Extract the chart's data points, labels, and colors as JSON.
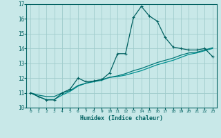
{
  "xlabel": "Humidex (Indice chaleur)",
  "ylabel": "",
  "bg_color": "#c8e8e8",
  "grid_color": "#a0cccc",
  "line_color1": "#006060",
  "line_color2": "#007878",
  "line_color3": "#009090",
  "xlim": [
    -0.5,
    23.5
  ],
  "ylim": [
    10,
    17
  ],
  "yticks": [
    10,
    11,
    12,
    13,
    14,
    15,
    16,
    17
  ],
  "xticks": [
    0,
    1,
    2,
    3,
    4,
    5,
    6,
    7,
    8,
    9,
    10,
    11,
    12,
    13,
    14,
    15,
    16,
    17,
    18,
    19,
    20,
    21,
    22,
    23
  ],
  "line1_x": [
    0,
    1,
    2,
    3,
    4,
    5,
    6,
    7,
    8,
    9,
    10,
    11,
    12,
    13,
    14,
    15,
    16,
    17,
    18,
    19,
    20,
    21,
    22,
    23
  ],
  "line1_y": [
    11.0,
    10.75,
    10.52,
    10.52,
    11.0,
    11.25,
    12.0,
    11.75,
    11.8,
    11.9,
    12.35,
    13.65,
    13.65,
    16.1,
    16.85,
    16.2,
    15.85,
    14.75,
    14.1,
    14.0,
    13.9,
    13.9,
    14.0,
    13.45
  ],
  "line2_x": [
    0,
    1,
    2,
    3,
    4,
    5,
    6,
    7,
    8,
    9,
    10,
    11,
    12,
    13,
    14,
    15,
    16,
    17,
    18,
    19,
    20,
    21,
    22,
    23
  ],
  "line2_y": [
    11.0,
    10.75,
    10.55,
    10.55,
    10.85,
    11.1,
    11.45,
    11.65,
    11.75,
    11.85,
    12.05,
    12.1,
    12.2,
    12.35,
    12.5,
    12.7,
    12.9,
    13.05,
    13.2,
    13.4,
    13.6,
    13.7,
    13.85,
    14.0
  ],
  "line3_x": [
    0,
    1,
    2,
    3,
    4,
    5,
    6,
    7,
    8,
    9,
    10,
    11,
    12,
    13,
    14,
    15,
    16,
    17,
    18,
    19,
    20,
    21,
    22,
    23
  ],
  "line3_y": [
    11.0,
    10.85,
    10.75,
    10.75,
    11.0,
    11.15,
    11.5,
    11.65,
    11.8,
    11.9,
    12.05,
    12.15,
    12.3,
    12.5,
    12.65,
    12.85,
    13.05,
    13.2,
    13.35,
    13.55,
    13.7,
    13.75,
    13.9,
    14.05
  ]
}
